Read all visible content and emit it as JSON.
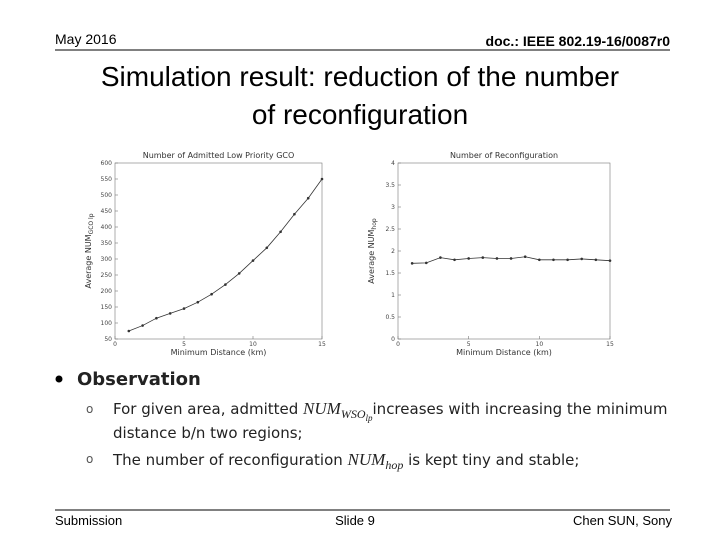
{
  "header": {
    "date": "May 2016",
    "doc": "doc.: IEEE 802.19-16/0087r0"
  },
  "title": [
    "Simulation result: reduction of the number",
    "of reconfiguration"
  ],
  "chart_data": [
    {
      "type": "line",
      "title": "Number of Admitted Low Priority GCO",
      "xlabel": "Minimum Distance (km)",
      "ylabel": "Average NUM",
      "ylabel_sub": "GCO lp",
      "x": [
        1,
        2,
        3,
        4,
        5,
        6,
        7,
        8,
        9,
        10,
        11,
        12,
        13,
        14,
        15
      ],
      "series": [
        {
          "name": "NUM GCO lp",
          "color": "#333333",
          "values": [
            75,
            92,
            115,
            130,
            145,
            165,
            190,
            220,
            255,
            295,
            335,
            385,
            440,
            490,
            550
          ]
        }
      ],
      "xlim": [
        0,
        15
      ],
      "xticks": [
        0,
        5,
        10,
        15
      ],
      "ylim": [
        50,
        600
      ],
      "yticks": [
        50,
        100,
        150,
        200,
        250,
        300,
        350,
        400,
        450,
        500,
        550,
        600
      ]
    },
    {
      "type": "line",
      "title": "Number of Reconfiguration",
      "xlabel": "Minimum Distance (km)",
      "ylabel": "Average NUM",
      "ylabel_sub": "hop",
      "x": [
        1,
        2,
        3,
        4,
        5,
        6,
        7,
        8,
        9,
        10,
        11,
        12,
        13,
        14,
        15
      ],
      "series": [
        {
          "name": "NUM hop",
          "color": "#333333",
          "values": [
            1.72,
            1.73,
            1.85,
            1.8,
            1.83,
            1.85,
            1.83,
            1.83,
            1.87,
            1.8,
            1.8,
            1.8,
            1.82,
            1.8,
            1.78
          ]
        }
      ],
      "xlim": [
        0,
        15
      ],
      "xticks": [
        0,
        5,
        10,
        15
      ],
      "ylim": [
        0,
        4
      ],
      "yticks": [
        0,
        0.5,
        1,
        1.5,
        2,
        2.5,
        3,
        3.5,
        4
      ]
    }
  ],
  "observation": {
    "heading": "Observation",
    "items": [
      {
        "pre": "For given area, admitted ",
        "math": "NUM",
        "sub": "WSO",
        "subsub": "lp",
        "post": "increases with increasing the minimum",
        "cont": "distance b/n two regions;"
      },
      {
        "pre": "The number of reconfiguration ",
        "math": "NUM",
        "sub": "hop",
        "post": " is kept tiny and stable;"
      }
    ]
  },
  "footer": {
    "left": "Submission",
    "center": "Slide 9",
    "right": "Chen SUN, Sony"
  }
}
